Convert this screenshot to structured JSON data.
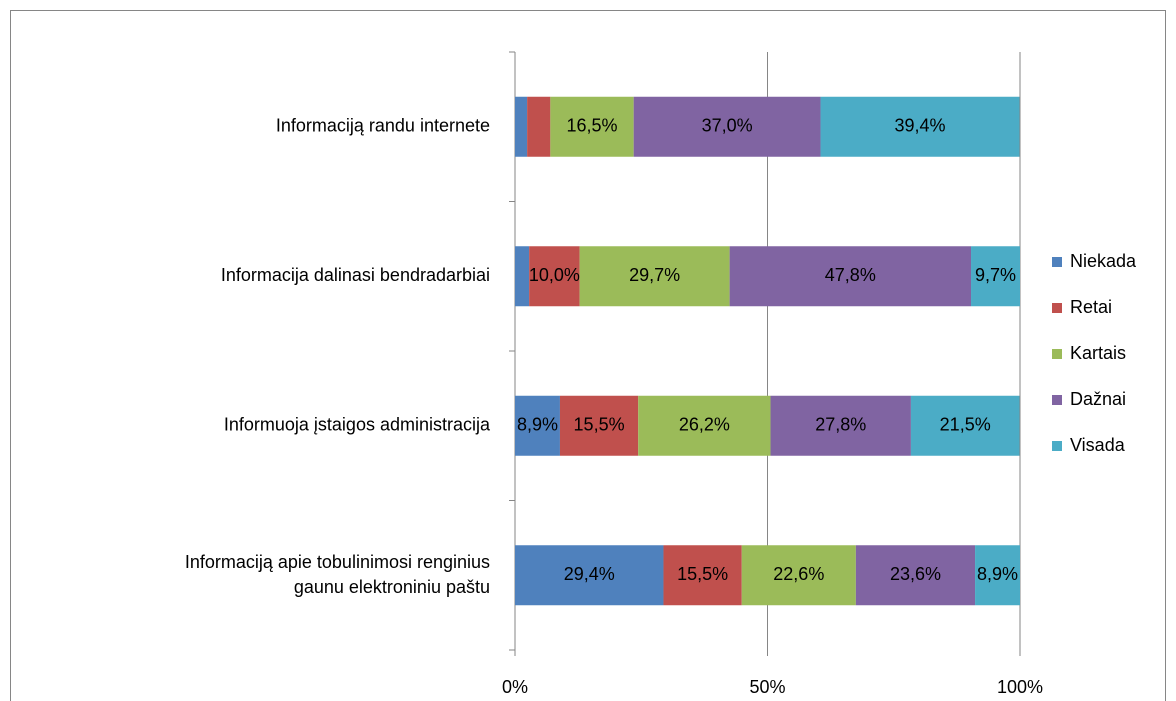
{
  "chart_data": {
    "type": "stacked_barh",
    "categories": [
      "Informaciją randu internete",
      "Informacija dalinasi bendradarbiai",
      "Informuoja įstaigos administracija",
      "Informaciją apie tobulinimosi renginius\ngaunu elektroniniu paštu"
    ],
    "series": [
      {
        "name": "Niekada",
        "color": "#4f81bd",
        "values": [
          2.4,
          2.8,
          8.9,
          29.4
        ],
        "value_labels": [
          null,
          null,
          "8,9%",
          "29,4%"
        ]
      },
      {
        "name": "Retai",
        "color": "#c0504d",
        "values": [
          4.6,
          10.0,
          15.5,
          15.5
        ],
        "value_labels": [
          null,
          "10,0%",
          "15,5%",
          "15,5%"
        ]
      },
      {
        "name": "Kartais",
        "color": "#9bbb59",
        "values": [
          16.5,
          29.7,
          26.2,
          22.6
        ],
        "value_labels": [
          "16,5%",
          "29,7%",
          "26,2%",
          "22,6%"
        ]
      },
      {
        "name": "Dažnai",
        "color": "#8064a2",
        "values": [
          37.0,
          47.8,
          27.8,
          23.6
        ],
        "value_labels": [
          "37,0%",
          "47,8%",
          "27,8%",
          "23,6%"
        ]
      },
      {
        "name": "Visada",
        "color": "#4bacc6",
        "values": [
          39.4,
          9.7,
          21.5,
          8.9
        ],
        "value_labels": [
          "39,4%",
          "9,7%",
          "21,5%",
          "8,9%"
        ]
      }
    ],
    "xlim": [
      0,
      100
    ],
    "xticks": [
      {
        "value": 0,
        "label": "0%"
      },
      {
        "value": 50,
        "label": "50%"
      },
      {
        "value": 100,
        "label": "100%"
      }
    ],
    "grid": true,
    "legend": "right"
  }
}
